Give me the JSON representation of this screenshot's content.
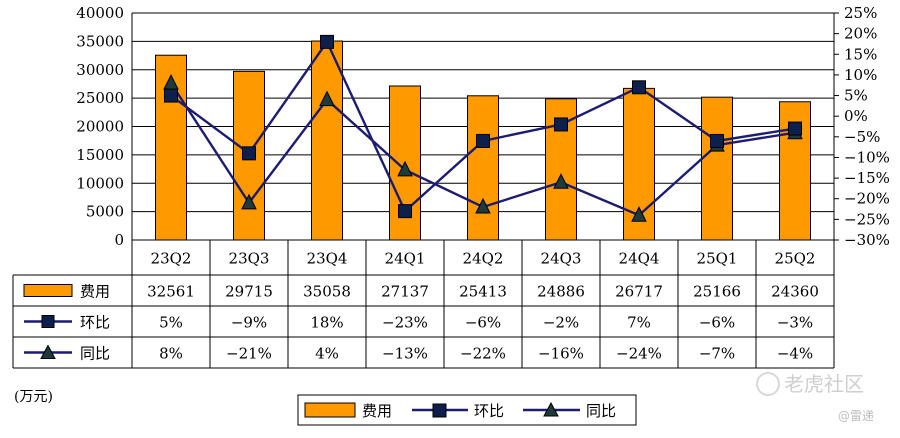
{
  "chart_data": {
    "type": "bar+line",
    "categories": [
      "23Q2",
      "23Q3",
      "23Q4",
      "24Q1",
      "24Q2",
      "24Q3",
      "24Q4",
      "25Q1",
      "25Q2"
    ],
    "bar_series": {
      "name": "费用",
      "values": [
        32561,
        29715,
        35058,
        27137,
        25413,
        24886,
        26717,
        25166,
        24360
      ]
    },
    "line_series": [
      {
        "name": "环比",
        "marker": "square",
        "values": [
          5,
          -9,
          18,
          -23,
          -6,
          -2,
          7,
          -6,
          -3
        ],
        "labels": [
          "5%",
          "−9%",
          "18%",
          "−23%",
          "−6%",
          "−2%",
          "7%",
          "−6%",
          "−3%"
        ]
      },
      {
        "name": "同比",
        "marker": "triangle",
        "values": [
          8,
          -21,
          4,
          -13,
          -22,
          -16,
          -24,
          -7,
          -4
        ],
        "labels": [
          "8%",
          "−21%",
          "4%",
          "−13%",
          "−22%",
          "−16%",
          "−24%",
          "−7%",
          "−4%"
        ]
      }
    ],
    "y_left": {
      "min": 0,
      "max": 40000,
      "ticks": [
        "40000",
        "35000",
        "30000",
        "25000",
        "20000",
        "15000",
        "10000",
        "5000",
        "0"
      ]
    },
    "y_right": {
      "min": -30,
      "max": 25,
      "ticks": [
        "25%",
        "20%",
        "15%",
        "10%",
        "5%",
        "0%",
        "−5%",
        "−10%",
        "−15%",
        "−20%",
        "−25%",
        "−30%"
      ]
    },
    "unit": "(万元)",
    "legend": [
      "费用",
      "环比",
      "同比"
    ],
    "grid": true
  },
  "colors": {
    "bar": "#FF9900",
    "bar_edge": "#000000",
    "line": "#1C1C73",
    "marker": "#0F1F4B",
    "triangle": "#1F3A3A"
  },
  "watermark": {
    "main": "老虎社区",
    "sub": "@雷递"
  }
}
